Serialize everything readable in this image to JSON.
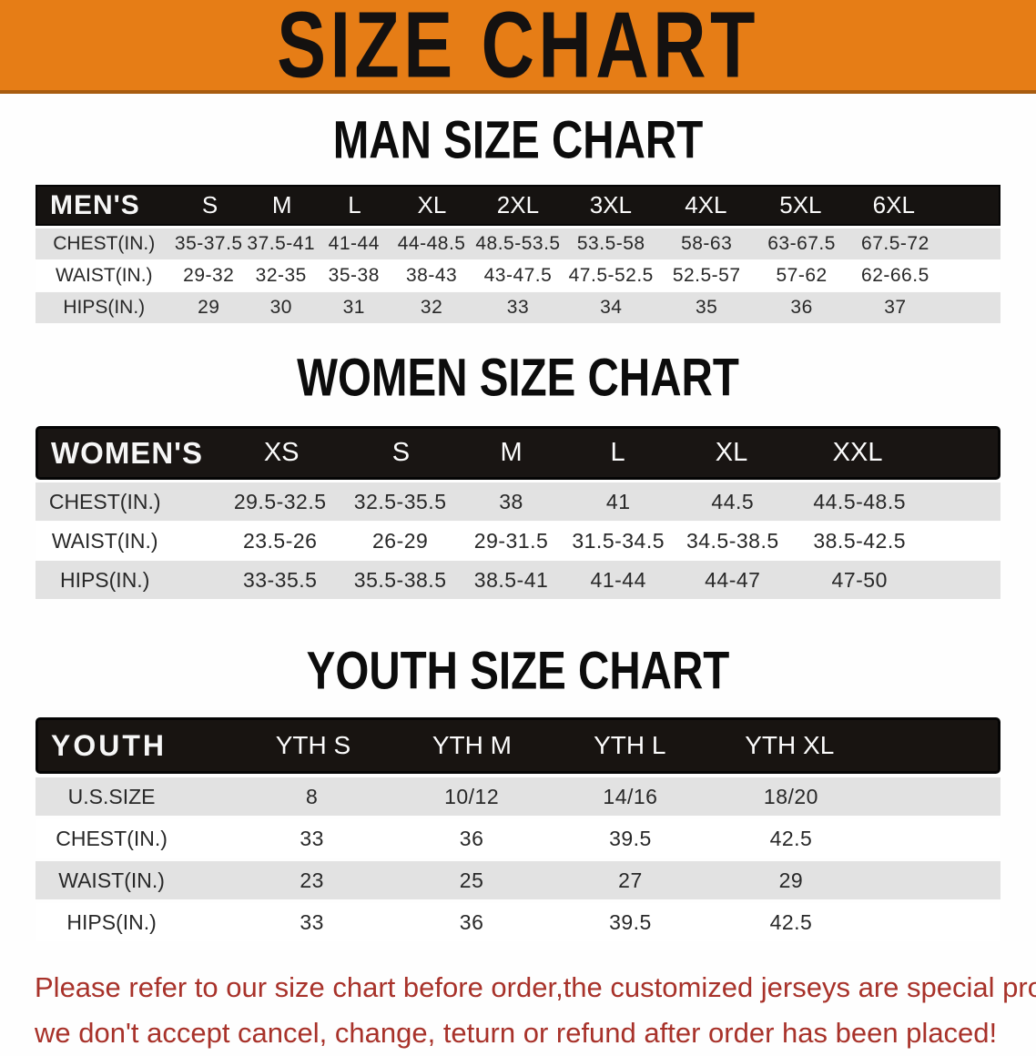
{
  "banner": {
    "title": "SIZE CHART"
  },
  "colors": {
    "banner_bg": "#e67d16",
    "banner_border": "#a85c10",
    "header_band": "#161311",
    "row_gray": "#e2e2e2",
    "disclaimer_red": "#a8322a"
  },
  "chart_data": [
    {
      "type": "table",
      "title": "MAN SIZE CHART",
      "corner_label": "MEN'S",
      "columns": [
        "S",
        "M",
        "L",
        "XL",
        "2XL",
        "3XL",
        "4XL",
        "5XL",
        "6XL"
      ],
      "rows": [
        {
          "label": "CHEST(IN.)",
          "values": [
            "35-37.5",
            "37.5-41",
            "41-44",
            "44-48.5",
            "48.5-53.5",
            "53.5-58",
            "58-63",
            "63-67.5",
            "67.5-72"
          ]
        },
        {
          "label": "WAIST(IN.)",
          "values": [
            "29-32",
            "32-35",
            "35-38",
            "38-43",
            "43-47.5",
            "47.5-52.5",
            "52.5-57",
            "57-62",
            "62-66.5"
          ]
        },
        {
          "label": "HIPS(IN.)",
          "values": [
            "29",
            "30",
            "31",
            "32",
            "33",
            "34",
            "35",
            "36",
            "37"
          ]
        }
      ]
    },
    {
      "type": "table",
      "title": "WOMEN SIZE CHART",
      "corner_label": "WOMEN'S",
      "columns": [
        "XS",
        "S",
        "M",
        "L",
        "XL",
        "XXL"
      ],
      "rows": [
        {
          "label": "CHEST(IN.)",
          "values": [
            "29.5-32.5",
            "32.5-35.5",
            "38",
            "41",
            "44.5",
            "44.5-48.5"
          ]
        },
        {
          "label": "WAIST(IN.)",
          "values": [
            "23.5-26",
            "26-29",
            "29-31.5",
            "31.5-34.5",
            "34.5-38.5",
            "38.5-42.5"
          ]
        },
        {
          "label": "HIPS(IN.)",
          "values": [
            "33-35.5",
            "35.5-38.5",
            "38.5-41",
            "41-44",
            "44-47",
            "47-50"
          ]
        }
      ]
    },
    {
      "type": "table",
      "title": "YOUTH SIZE CHART",
      "corner_label": "YOUTH",
      "columns": [
        "YTH S",
        "YTH M",
        "YTH L",
        "YTH XL"
      ],
      "rows": [
        {
          "label": "U.S.SIZE",
          "values": [
            "8",
            "10/12",
            "14/16",
            "18/20"
          ]
        },
        {
          "label": "CHEST(IN.)",
          "values": [
            "33",
            "36",
            "39.5",
            "42.5"
          ]
        },
        {
          "label": "WAIST(IN.)",
          "values": [
            "23",
            "25",
            "27",
            "29"
          ]
        },
        {
          "label": "HIPS(IN.)",
          "values": [
            "33",
            "36",
            "39.5",
            "42.5"
          ]
        }
      ]
    }
  ],
  "disclaimer": {
    "line1": "Please refer to our size chart before order,the customized jerseys are special products,",
    "line2": "we don't accept cancel, change, teturn or refund after order has been placed!"
  }
}
